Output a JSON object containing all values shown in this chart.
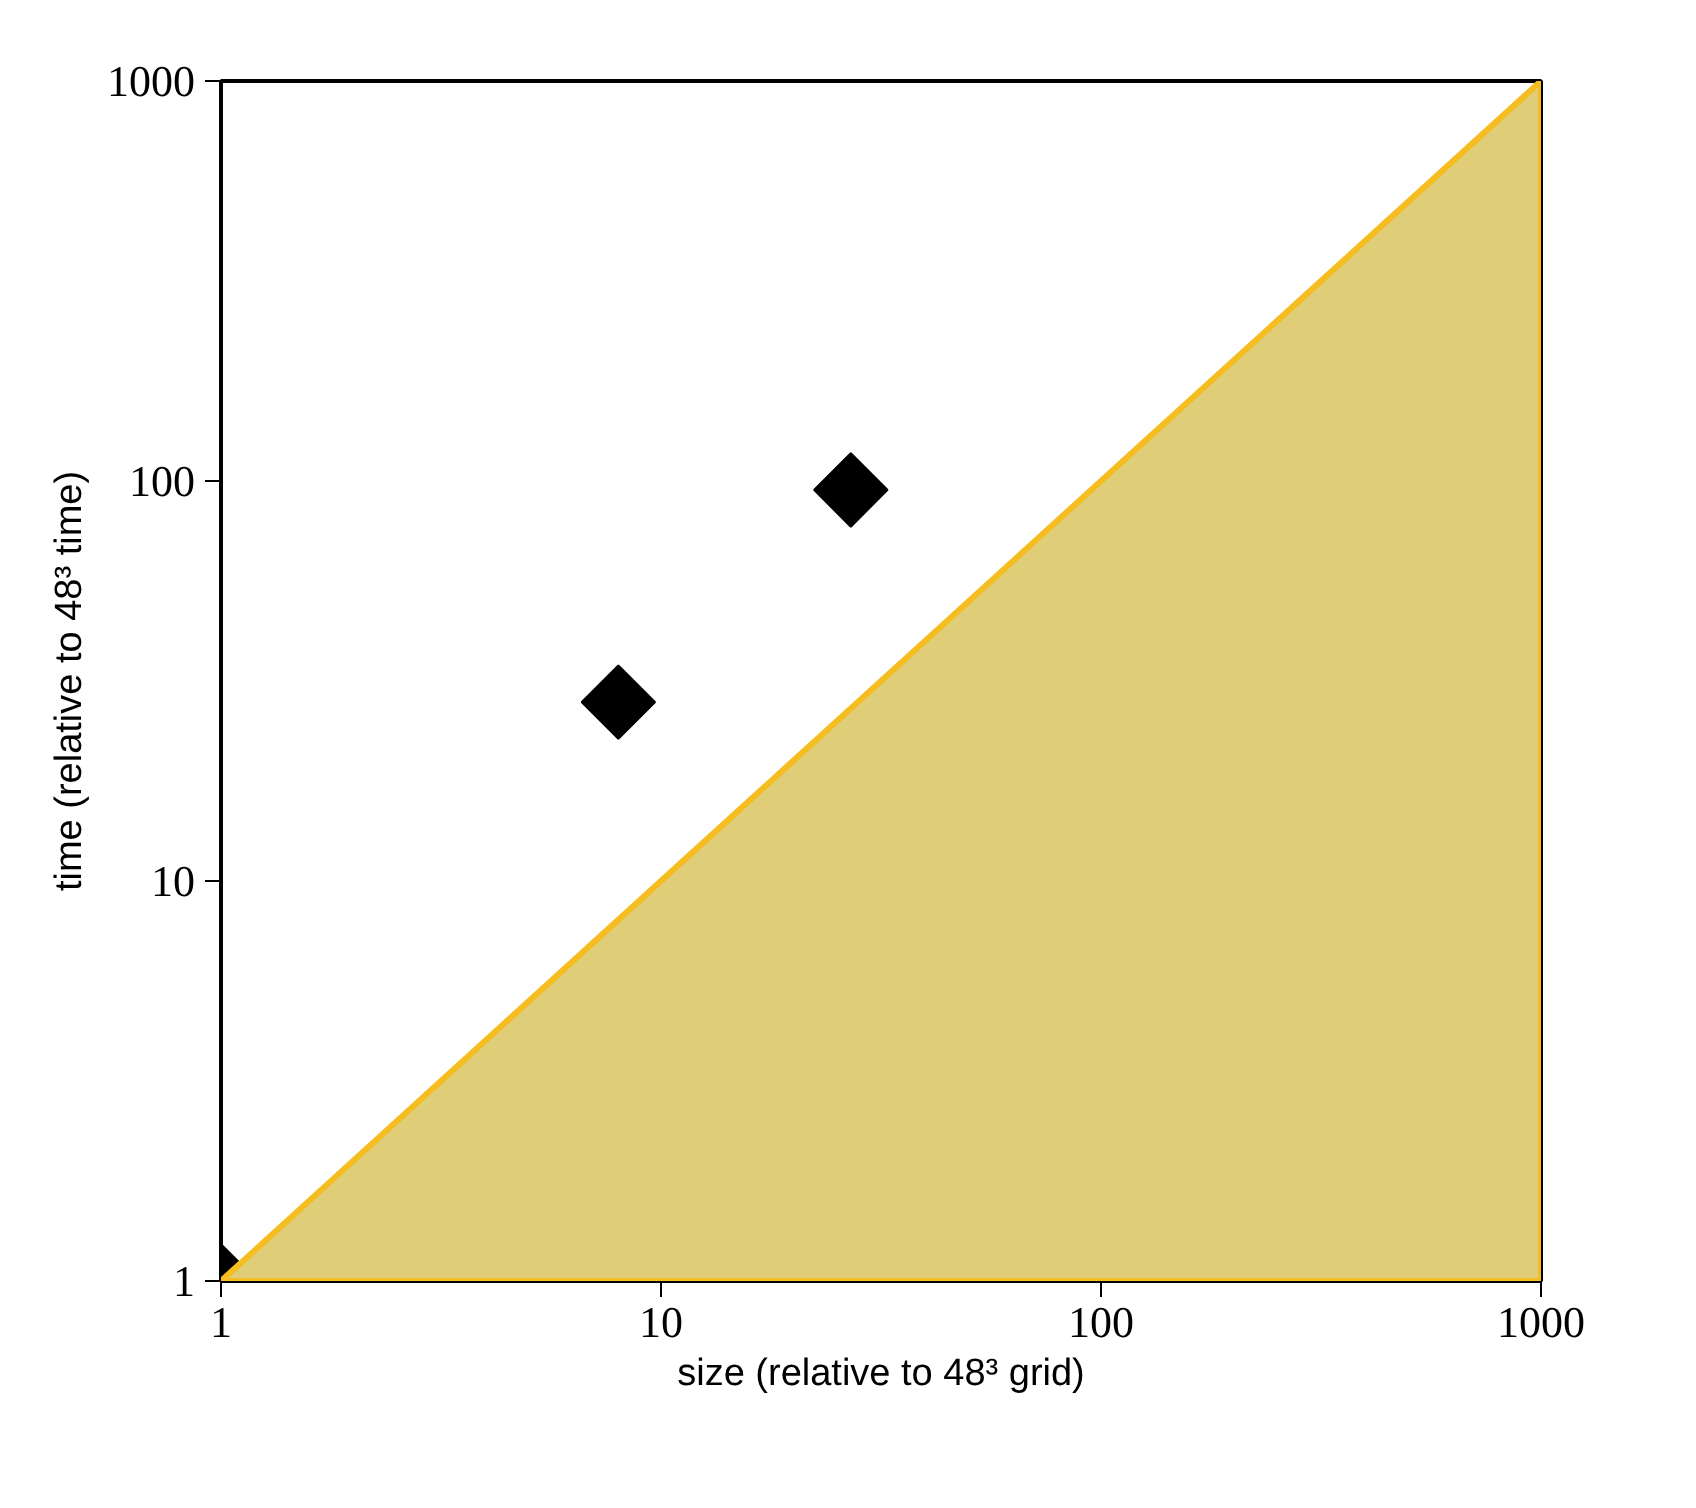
{
  "chart_data": {
    "type": "scatter",
    "xlabel": "size (relative to 48³ grid)",
    "ylabel": "time (relative to 48³ time)",
    "log": "xy",
    "grid": false,
    "xlim": [
      1,
      1000
    ],
    "ylim": [
      1,
      1000
    ],
    "xticks": [
      1,
      10,
      100,
      1000
    ],
    "yticks": [
      1,
      10,
      100,
      1000
    ],
    "series": [
      {
        "color": "#000000",
        "marker": "diamond",
        "x": [
          1,
          8,
          27
        ],
        "values": [
          1,
          28,
          95
        ]
      },
      {
        "type": "area",
        "color": "#e0cd78",
        "x": [
          1,
          1000
        ],
        "values": [
          1,
          1000
        ]
      }
    ]
  }
}
